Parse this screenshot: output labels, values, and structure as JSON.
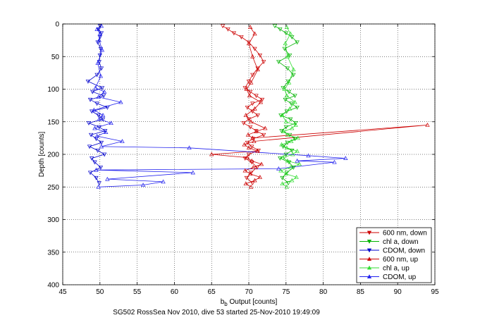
{
  "chart_data": {
    "type": "line",
    "title": "",
    "xlabel": "b_b Output [counts]",
    "xlabel_main": "b",
    "xlabel_sub": "b",
    "xlabel_rest": " Output [counts]",
    "ylabel": "Depth [counts]",
    "xlim": [
      45,
      95
    ],
    "ylim": [
      0,
      400
    ],
    "y_reversed": true,
    "grid": true,
    "xticks": [
      "45",
      "50",
      "55",
      "60",
      "65",
      "70",
      "75",
      "80",
      "85",
      "90",
      "95"
    ],
    "yticks": [
      "0",
      "50",
      "100",
      "150",
      "200",
      "250",
      "300",
      "350",
      "400"
    ],
    "footer": "SG502 RossSea Nov 2010, dive 53 started 25-Nov-2010 19:49:09",
    "legend_position": "bottom-right",
    "series": [
      {
        "name": "600 nm, down",
        "color": "#cc0000",
        "marker": "down-triangle",
        "x": [
          66.5,
          67.2,
          68.0,
          69.0,
          70.0,
          70.8,
          71.5,
          72.0,
          71.2,
          70.5,
          70.0,
          69.5,
          70.2,
          71.0,
          71.8,
          70.5,
          69.8,
          70.5,
          71.2,
          70.0,
          69.3,
          70.2,
          71.0,
          72.0,
          70.6,
          69.8,
          70.4,
          71.3,
          70.0,
          69.5,
          70.4,
          71.1,
          70.3,
          69.7,
          70.5
        ],
        "y": [
          3,
          8,
          14,
          20,
          28,
          38,
          48,
          58,
          68,
          78,
          88,
          98,
          104,
          110,
          116,
          122,
          128,
          134,
          140,
          146,
          152,
          158,
          164,
          170,
          176,
          182,
          188,
          194,
          200,
          206,
          212,
          220,
          228,
          236,
          244
        ]
      },
      {
        "name": "chl a, down",
        "color": "#00b300",
        "marker": "down-triangle",
        "x": [
          73.5,
          74.2,
          75.0,
          75.8,
          76.5,
          74.8,
          75.5,
          74.0,
          75.2,
          76.0,
          75.3,
          74.6,
          75.4,
          76.2,
          74.9,
          75.7,
          76.5,
          75.1,
          74.3,
          75.6,
          76.3,
          75.0,
          74.4,
          75.5,
          76.2,
          75.2,
          74.6,
          75.8,
          75.0,
          74.2,
          75.4,
          76.0,
          75.1,
          74.5,
          75.3
        ],
        "y": [
          3,
          8,
          14,
          20,
          28,
          38,
          48,
          58,
          68,
          78,
          88,
          98,
          104,
          110,
          116,
          122,
          128,
          134,
          140,
          146,
          152,
          158,
          164,
          170,
          176,
          182,
          188,
          194,
          200,
          206,
          212,
          220,
          228,
          236,
          244
        ]
      },
      {
        "name": "CDOM, down",
        "color": "#0000cc",
        "marker": "down-triangle",
        "x": [
          50.0,
          49.8,
          50.2,
          50.0,
          49.7,
          50.1,
          50.0,
          49.9,
          50.2,
          49.6,
          48.4,
          50.3,
          49.0,
          50.5,
          48.7,
          49.6,
          51.0,
          48.9,
          49.8,
          50.4,
          48.5,
          49.9,
          50.7,
          48.8,
          49.5,
          50.2,
          48.6,
          49.7,
          50.6,
          48.9,
          49.3,
          50.1,
          48.7,
          49.5,
          49.9
        ],
        "y": [
          3,
          8,
          14,
          20,
          28,
          38,
          48,
          58,
          68,
          78,
          88,
          98,
          104,
          110,
          116,
          122,
          128,
          134,
          140,
          146,
          152,
          158,
          164,
          170,
          176,
          182,
          188,
          194,
          200,
          206,
          212,
          220,
          228,
          236,
          244
        ]
      },
      {
        "name": "600 nm, up",
        "color": "#cc0000",
        "marker": "up-triangle",
        "x": [
          70.3,
          69.6,
          70.8,
          71.5,
          70.2,
          69.5,
          70.6,
          71.7,
          70.4,
          69.8,
          65.0,
          71.2,
          70.0,
          69.4,
          70.7,
          94.0,
          70.5,
          69.9,
          71.0,
          72.2,
          70.3,
          69.6,
          70.8,
          71.6,
          70.1,
          69.7,
          70.3,
          71.2,
          70.5,
          70.0,
          70.8,
          70.2
        ],
        "y": [
          250,
          245,
          240,
          235,
          230,
          225,
          220,
          215,
          210,
          205,
          200,
          195,
          190,
          185,
          180,
          155,
          175,
          170,
          165,
          160,
          150,
          140,
          130,
          120,
          110,
          100,
          90,
          70,
          50,
          30,
          15,
          5
        ]
      },
      {
        "name": "chl a, up",
        "color": "#33dd33",
        "marker": "up-triangle",
        "x": [
          75.1,
          74.5,
          75.8,
          76.4,
          75.0,
          74.3,
          75.6,
          76.8,
          75.2,
          74.6,
          75.9,
          76.5,
          75.1,
          74.4,
          75.7,
          76.6,
          75.2,
          74.7,
          75.8,
          76.3,
          75.0,
          74.5,
          75.5,
          76.2,
          75.1,
          74.8,
          75.4,
          76.0,
          75.2,
          74.9,
          75.6,
          75.1
        ],
        "y": [
          250,
          245,
          240,
          235,
          230,
          225,
          220,
          215,
          210,
          205,
          200,
          195,
          190,
          185,
          180,
          175,
          170,
          165,
          160,
          155,
          150,
          140,
          130,
          120,
          110,
          100,
          90,
          70,
          50,
          30,
          15,
          5
        ]
      },
      {
        "name": "CDOM, up",
        "color": "#2222ee",
        "marker": "up-triangle",
        "x": [
          49.8,
          55.8,
          58.5,
          51.0,
          62.5,
          49.5,
          74.0,
          81.5,
          76.5,
          83.0,
          78.0,
          62.0,
          50.2,
          53.0,
          49.6,
          50.8,
          49.3,
          51.5,
          49.9,
          50.4,
          49.2,
          52.8,
          49.8,
          50.6,
          49.4,
          50.1,
          49.7,
          50.3,
          49.9,
          50.0,
          49.6,
          50.2
        ],
        "y": [
          250,
          247,
          242,
          238,
          228,
          224,
          222,
          212,
          210,
          206,
          202,
          190,
          188,
          180,
          172,
          166,
          160,
          152,
          146,
          140,
          132,
          120,
          112,
          104,
          98,
          80,
          60,
          40,
          25,
          15,
          8,
          3
        ]
      }
    ]
  }
}
